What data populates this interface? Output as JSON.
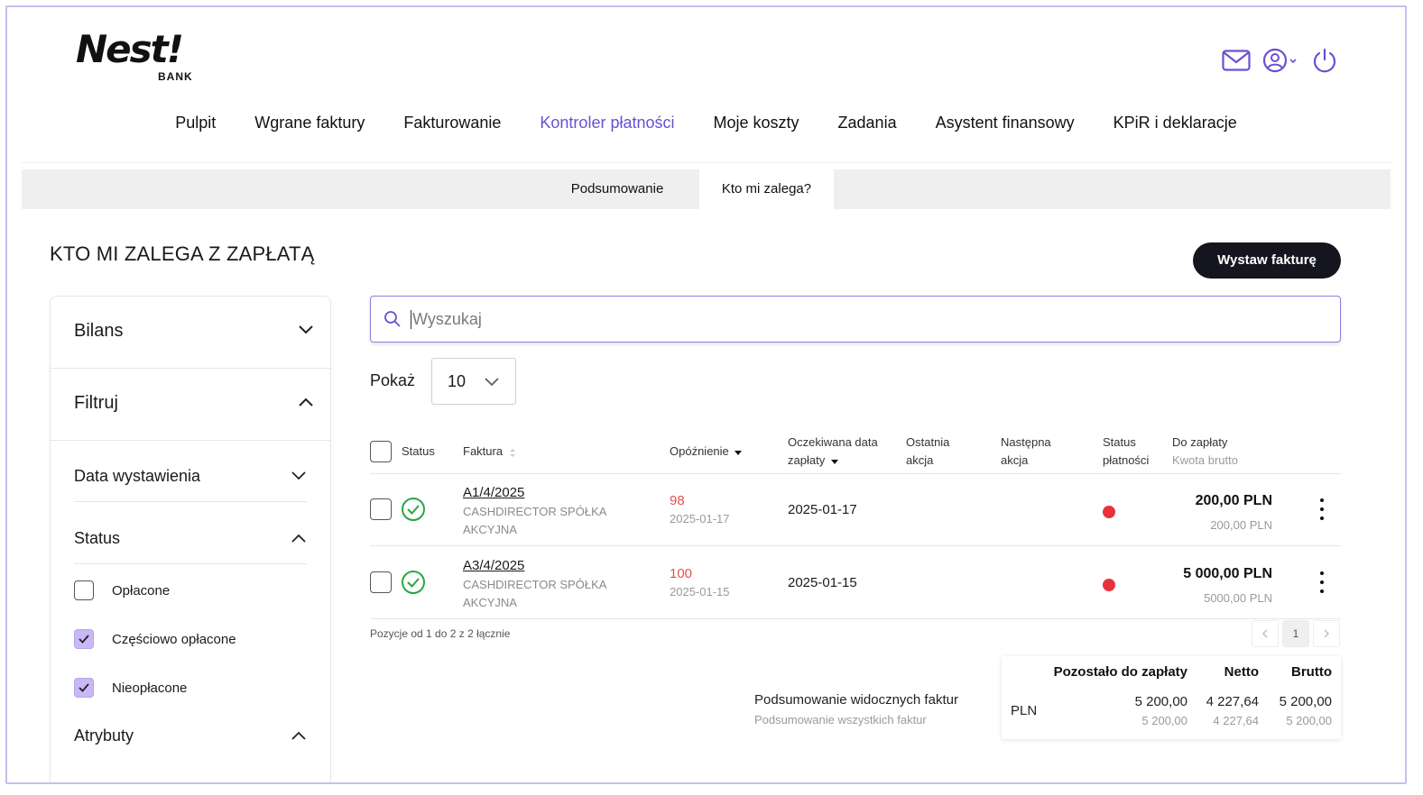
{
  "brand": {
    "logo_main": "Nest!",
    "logo_sub": "BANK"
  },
  "header_icons": [
    "mail-icon",
    "user-account-icon",
    "power-icon"
  ],
  "main_nav": [
    {
      "label": "Pulpit",
      "active": false
    },
    {
      "label": "Wgrane faktury",
      "active": false
    },
    {
      "label": "Fakturowanie",
      "active": false
    },
    {
      "label": "Kontroler płatności",
      "active": true
    },
    {
      "label": "Moje koszty",
      "active": false
    },
    {
      "label": "Zadania",
      "active": false
    },
    {
      "label": "Asystent finansowy",
      "active": false
    },
    {
      "label": "KPiR i deklaracje",
      "active": false
    }
  ],
  "sub_nav": {
    "tab1": "Podsumowanie",
    "tab2": "Kto mi zalega?",
    "active": "tab2"
  },
  "page": {
    "title": "KTO MI ZALEGA Z ZAPŁATĄ",
    "primary_button": "Wystaw fakturę"
  },
  "sidebar": {
    "balance": "Bilans",
    "filter": "Filtruj",
    "issue_date": "Data wystawienia",
    "status": "Status",
    "status_options": [
      {
        "label": "Opłacone",
        "checked": false
      },
      {
        "label": "Częściowo opłacone",
        "checked": true
      },
      {
        "label": "Nieopłacone",
        "checked": true
      }
    ],
    "attributes": "Atrybuty"
  },
  "search": {
    "placeholder": "Wyszukaj"
  },
  "show": {
    "label": "Pokaż",
    "value": "10"
  },
  "table": {
    "headers": {
      "status": "Status",
      "invoice": "Faktura",
      "delay": "Opóźnienie",
      "expected_1": "Oczekiwana data",
      "expected_2": "zapłaty",
      "last_1": "Ostatnia",
      "last_2": "akcja",
      "next_1": "Następna",
      "next_2": "akcja",
      "pay_1": "Status",
      "pay_2": "płatności",
      "due_1": "Do zapłaty",
      "due_2": "Kwota brutto"
    },
    "rows": [
      {
        "invoice": "A1/4/2025",
        "client_1": "CASHDIRECTOR SPÓŁKA",
        "client_2": "AKCYJNA",
        "delay": "98",
        "delay_date": "2025-01-17",
        "expected": "2025-01-17",
        "due": "200,00 PLN",
        "gross": "200,00 PLN",
        "payment_status_color": "#e8323b"
      },
      {
        "invoice": "A3/4/2025",
        "client_1": "CASHDIRECTOR SPÓŁKA",
        "client_2": "AKCYJNA",
        "delay": "100",
        "delay_date": "2025-01-15",
        "expected": "2025-01-15",
        "due": "5 000,00 PLN",
        "gross": "5000,00 PLN",
        "payment_status_color": "#e8323b"
      }
    ]
  },
  "pagination": {
    "info": "Pozycje od 1 do 2 z 2 łącznie",
    "current": "1"
  },
  "summary": {
    "label": "Podsumowanie widocznych faktur",
    "sublabel": "Podsumowanie wszystkich faktur",
    "headers": {
      "remaining": "Pozostało do zapłaty",
      "net": "Netto",
      "gross": "Brutto"
    },
    "currency": "PLN",
    "visible": {
      "remaining": "5 200,00",
      "net": "4 227,64",
      "gross": "5 200,00"
    },
    "all": {
      "remaining": "5 200,00",
      "net": "4 227,64",
      "gross": "5 200,00"
    }
  },
  "colors": {
    "accent": "#6a4fd3",
    "checkbox_checked": "#c9b8f5",
    "overdue": "#e25353",
    "status_ok": "#27a644",
    "status_red": "#e8323b",
    "button_dark": "#151520"
  }
}
